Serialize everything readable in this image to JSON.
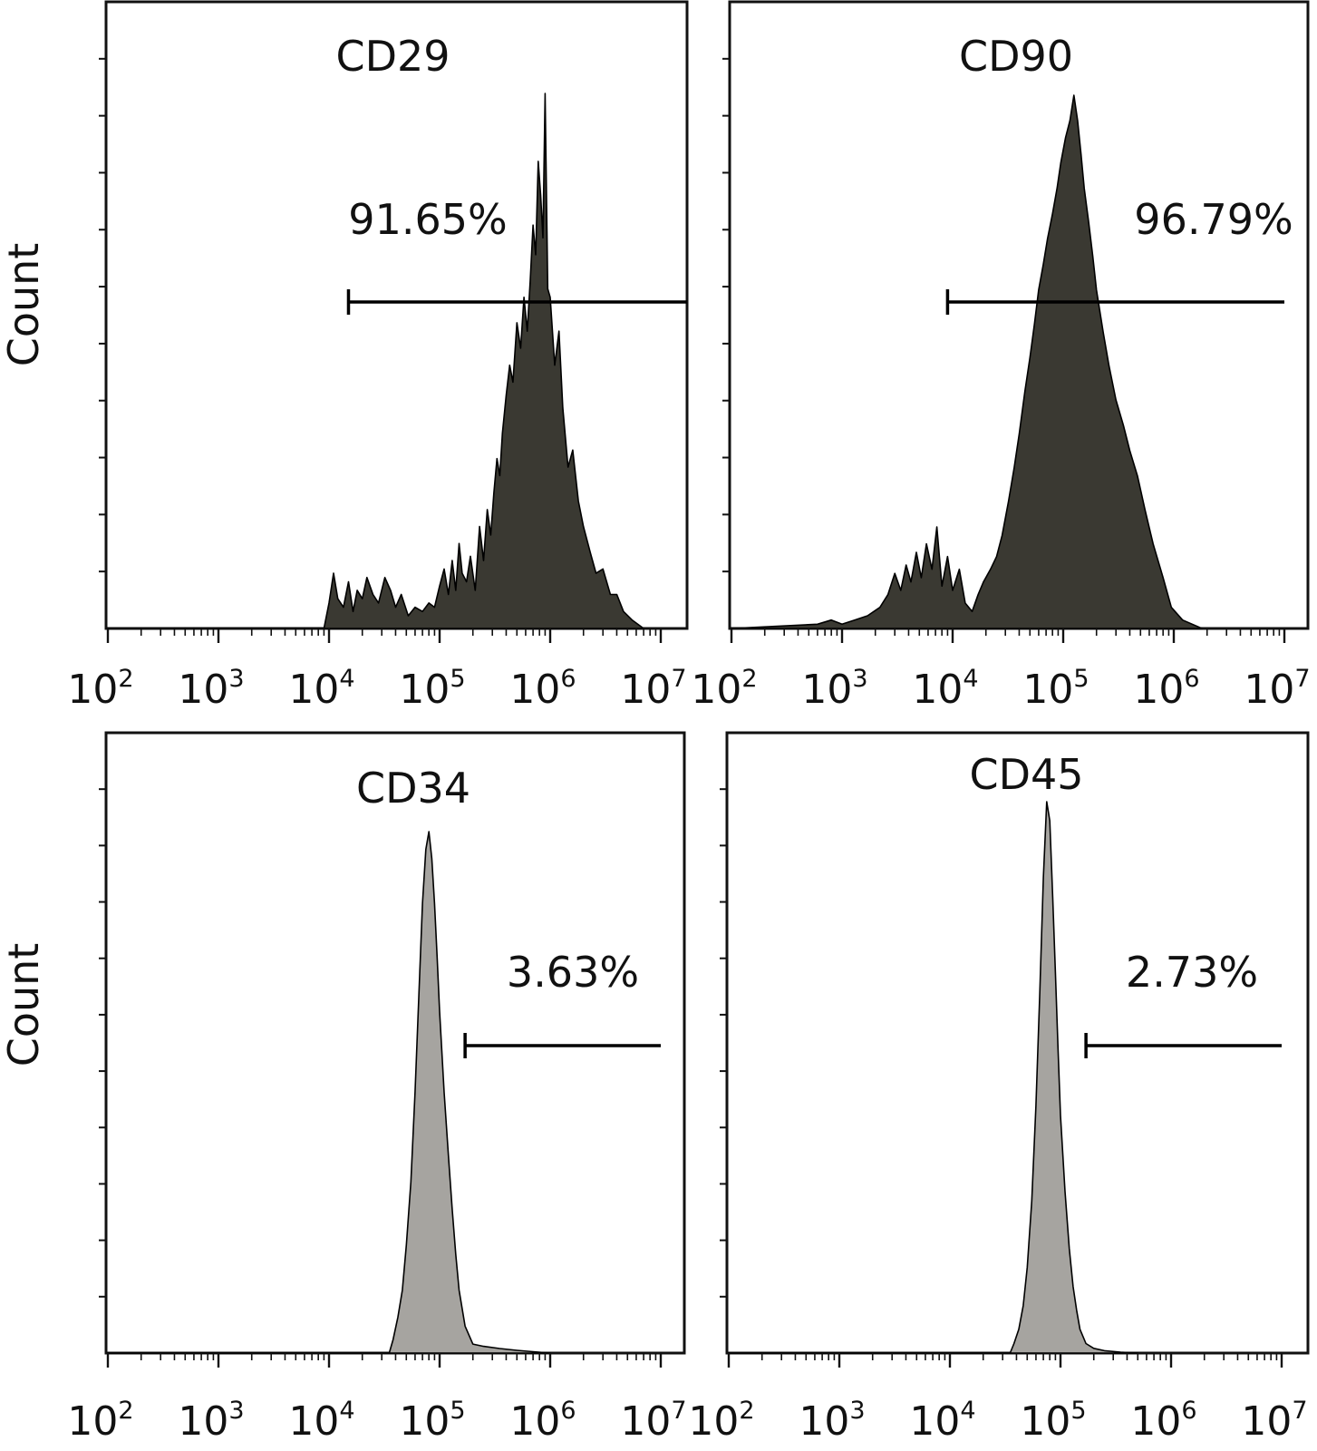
{
  "colors": {
    "frame": "#111111",
    "positive_fill": "#3a3932",
    "negative_fill": "#a6a4a0",
    "text": "#111111"
  },
  "figure": {
    "ylabel_top": "Count",
    "ylabel_bottom": "Count"
  },
  "chart_data": [
    {
      "type": "area",
      "title": "CD29",
      "ylabel": "Count",
      "x_scale": "log",
      "xlim": [
        100,
        20000000
      ],
      "x_ticks": [
        {
          "base": "10",
          "exp": "2",
          "value": 100
        },
        {
          "base": "10",
          "exp": "3",
          "value": 1000
        },
        {
          "base": "10",
          "exp": "4",
          "value": 10000
        },
        {
          "base": "10",
          "exp": "5",
          "value": 100000
        },
        {
          "base": "10",
          "exp": "6",
          "value": 1000000
        },
        {
          "base": "10",
          "exp": "7",
          "value": 10000000
        }
      ],
      "fill": "dark",
      "gate": {
        "label": "91.65%",
        "start": 15000,
        "end": 20000000
      },
      "series": [
        {
          "x": [
            100,
            9000,
            10000,
            11000,
            12000,
            13500,
            15000,
            16500,
            18000,
            20000,
            22000,
            25000,
            28000,
            32000,
            36000,
            40000,
            45000,
            52000,
            60000,
            70000,
            80000,
            90000,
            100000,
            110000,
            120000,
            130000,
            140000,
            150000,
            160000,
            175000,
            190000,
            210000,
            230000,
            250000,
            270000,
            290000,
            310000,
            330000,
            350000,
            370000,
            400000,
            430000,
            460000,
            500000,
            540000,
            580000,
            620000,
            660000,
            700000,
            740000,
            780000,
            820000,
            860000,
            900000,
            950000,
            1000000,
            1100000,
            1200000,
            1300000,
            1450000,
            1600000,
            1800000,
            2000000,
            2300000,
            2600000,
            3000000,
            3500000,
            4000000,
            4600000,
            5500000,
            7000000
          ],
          "y": [
            0,
            0,
            6,
            13,
            7,
            5,
            11,
            4,
            9,
            7,
            12,
            8,
            6,
            12,
            9,
            5,
            8,
            3,
            5,
            4,
            6,
            5,
            10,
            14,
            8,
            16,
            9,
            20,
            13,
            11,
            17,
            9,
            24,
            16,
            28,
            22,
            32,
            40,
            36,
            46,
            55,
            62,
            58,
            72,
            66,
            78,
            70,
            82,
            95,
            88,
            110,
            102,
            92,
            126,
            80,
            78,
            62,
            70,
            52,
            38,
            42,
            30,
            24,
            18,
            13,
            14,
            8,
            8,
            4,
            2,
            0
          ]
        }
      ]
    },
    {
      "type": "area",
      "title": "CD90",
      "ylabel": "",
      "x_scale": "log",
      "xlim": [
        100,
        10000000
      ],
      "x_ticks": [
        {
          "base": "10",
          "exp": "2",
          "value": 100
        },
        {
          "base": "10",
          "exp": "3",
          "value": 1000
        },
        {
          "base": "10",
          "exp": "4",
          "value": 10000
        },
        {
          "base": "10",
          "exp": "5",
          "value": 100000
        },
        {
          "base": "10",
          "exp": "6",
          "value": 1000000
        },
        {
          "base": "10",
          "exp": "7",
          "value": 10000000
        }
      ],
      "fill": "dark",
      "gate": {
        "label": "96.79%",
        "start": 9000,
        "end": 10000000
      },
      "series": [
        {
          "x": [
            100,
            600,
            800,
            1000,
            1300,
            1700,
            2200,
            2600,
            3000,
            3400,
            3800,
            4200,
            4700,
            5200,
            5800,
            6500,
            7200,
            8000,
            9000,
            10000,
            11500,
            13000,
            15000,
            17000,
            19000,
            22000,
            25000,
            28000,
            32000,
            36000,
            40000,
            45000,
            50000,
            55000,
            60000,
            66000,
            72000,
            80000,
            88000,
            95000,
            105000,
            115000,
            125000,
            135000,
            145000,
            155000,
            170000,
            185000,
            200000,
            230000,
            260000,
            300000,
            350000,
            400000,
            470000,
            550000,
            650000,
            800000,
            950000,
            1200000,
            1800000
          ],
          "y": [
            0,
            1,
            2,
            1,
            2,
            3,
            5,
            8,
            13,
            9,
            15,
            11,
            18,
            12,
            20,
            14,
            24,
            10,
            17,
            9,
            14,
            6,
            4,
            8,
            11,
            14,
            17,
            22,
            30,
            38,
            46,
            56,
            64,
            72,
            80,
            86,
            92,
            98,
            104,
            110,
            116,
            120,
            126,
            120,
            112,
            104,
            96,
            88,
            80,
            70,
            62,
            54,
            48,
            42,
            36,
            28,
            20,
            12,
            5,
            2,
            0
          ]
        }
      ]
    },
    {
      "type": "area",
      "title": "CD34",
      "ylabel": "Count",
      "x_scale": "log",
      "xlim": [
        100,
        10000000
      ],
      "x_ticks": [
        {
          "base": "10",
          "exp": "2",
          "value": 100
        },
        {
          "base": "10",
          "exp": "3",
          "value": 1000
        },
        {
          "base": "10",
          "exp": "4",
          "value": 10000
        },
        {
          "base": "10",
          "exp": "5",
          "value": 100000
        },
        {
          "base": "10",
          "exp": "6",
          "value": 1000000
        },
        {
          "base": "10",
          "exp": "7",
          "value": 10000000
        }
      ],
      "fill": "light",
      "gate": {
        "label": "3.63%",
        "start": 170000,
        "end": 10000000
      },
      "series": [
        {
          "x": [
            100,
            35000,
            38000,
            42000,
            46000,
            50000,
            55000,
            60000,
            65000,
            70000,
            75000,
            80000,
            85000,
            90000,
            95000,
            100000,
            110000,
            120000,
            130000,
            140000,
            150000,
            170000,
            200000,
            250000,
            350000,
            500000,
            700000,
            1000000
          ],
          "y": [
            0,
            0,
            3,
            8,
            14,
            24,
            38,
            58,
            80,
            100,
            112,
            116,
            110,
            100,
            88,
            76,
            58,
            44,
            32,
            22,
            14,
            6,
            2,
            1.5,
            1,
            0.6,
            0.3,
            0
          ]
        }
      ]
    },
    {
      "type": "area",
      "title": "CD45",
      "ylabel": "",
      "x_scale": "log",
      "xlim": [
        100,
        10000000
      ],
      "x_ticks": [
        {
          "base": "10",
          "exp": "2",
          "value": 100
        },
        {
          "base": "10",
          "exp": "3",
          "value": 1000
        },
        {
          "base": "10",
          "exp": "4",
          "value": 10000
        },
        {
          "base": "10",
          "exp": "5",
          "value": 100000
        },
        {
          "base": "10",
          "exp": "6",
          "value": 1000000
        },
        {
          "base": "10",
          "exp": "7",
          "value": 10000000
        }
      ],
      "fill": "light",
      "gate": {
        "label": "2.73%",
        "start": 170000,
        "end": 10000000
      },
      "series": [
        {
          "x": [
            100,
            35000,
            38000,
            42000,
            46000,
            50000,
            55000,
            60000,
            65000,
            70000,
            75000,
            80000,
            85000,
            90000,
            95000,
            100000,
            110000,
            120000,
            130000,
            140000,
            150000,
            170000,
            200000,
            250000,
            350000,
            500000
          ],
          "y": [
            0,
            0,
            2,
            5,
            10,
            18,
            32,
            52,
            76,
            100,
            116,
            112,
            96,
            80,
            64,
            50,
            34,
            22,
            14,
            9,
            5,
            2,
            1,
            0.5,
            0.2,
            0
          ]
        }
      ]
    }
  ]
}
